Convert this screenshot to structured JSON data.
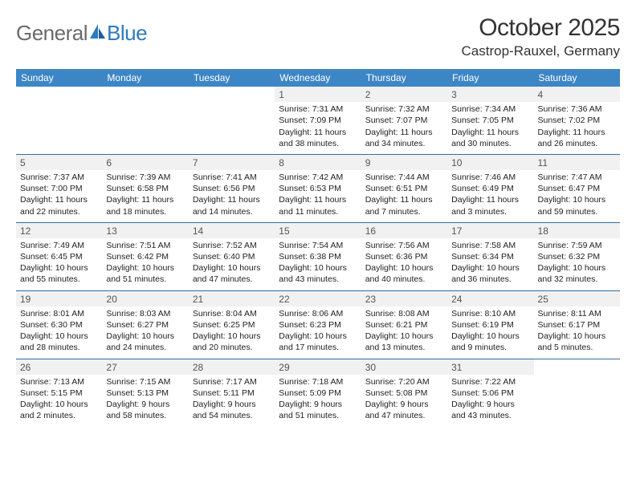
{
  "logo": {
    "part1": "General",
    "part2": "Blue"
  },
  "title": "October 2025",
  "location": "Castrop-Rauxel, Germany",
  "colors": {
    "header_bg": "#3d86c6",
    "header_text": "#ffffff",
    "row_border": "#2f6da8",
    "daynum_bg": "#f1f1f1",
    "daynum_color": "#555555",
    "body_text": "#222222",
    "title_color": "#333333",
    "logo_gray": "#6a6a6a",
    "logo_blue": "#2f7bbf"
  },
  "weekdays": [
    "Sunday",
    "Monday",
    "Tuesday",
    "Wednesday",
    "Thursday",
    "Friday",
    "Saturday"
  ],
  "cells": [
    {
      "day": "",
      "sunrise": "",
      "sunset": "",
      "daylight1": "",
      "daylight2": ""
    },
    {
      "day": "",
      "sunrise": "",
      "sunset": "",
      "daylight1": "",
      "daylight2": ""
    },
    {
      "day": "",
      "sunrise": "",
      "sunset": "",
      "daylight1": "",
      "daylight2": ""
    },
    {
      "day": "1",
      "sunrise": "Sunrise: 7:31 AM",
      "sunset": "Sunset: 7:09 PM",
      "daylight1": "Daylight: 11 hours",
      "daylight2": "and 38 minutes."
    },
    {
      "day": "2",
      "sunrise": "Sunrise: 7:32 AM",
      "sunset": "Sunset: 7:07 PM",
      "daylight1": "Daylight: 11 hours",
      "daylight2": "and 34 minutes."
    },
    {
      "day": "3",
      "sunrise": "Sunrise: 7:34 AM",
      "sunset": "Sunset: 7:05 PM",
      "daylight1": "Daylight: 11 hours",
      "daylight2": "and 30 minutes."
    },
    {
      "day": "4",
      "sunrise": "Sunrise: 7:36 AM",
      "sunset": "Sunset: 7:02 PM",
      "daylight1": "Daylight: 11 hours",
      "daylight2": "and 26 minutes."
    },
    {
      "day": "5",
      "sunrise": "Sunrise: 7:37 AM",
      "sunset": "Sunset: 7:00 PM",
      "daylight1": "Daylight: 11 hours",
      "daylight2": "and 22 minutes."
    },
    {
      "day": "6",
      "sunrise": "Sunrise: 7:39 AM",
      "sunset": "Sunset: 6:58 PM",
      "daylight1": "Daylight: 11 hours",
      "daylight2": "and 18 minutes."
    },
    {
      "day": "7",
      "sunrise": "Sunrise: 7:41 AM",
      "sunset": "Sunset: 6:56 PM",
      "daylight1": "Daylight: 11 hours",
      "daylight2": "and 14 minutes."
    },
    {
      "day": "8",
      "sunrise": "Sunrise: 7:42 AM",
      "sunset": "Sunset: 6:53 PM",
      "daylight1": "Daylight: 11 hours",
      "daylight2": "and 11 minutes."
    },
    {
      "day": "9",
      "sunrise": "Sunrise: 7:44 AM",
      "sunset": "Sunset: 6:51 PM",
      "daylight1": "Daylight: 11 hours",
      "daylight2": "and 7 minutes."
    },
    {
      "day": "10",
      "sunrise": "Sunrise: 7:46 AM",
      "sunset": "Sunset: 6:49 PM",
      "daylight1": "Daylight: 11 hours",
      "daylight2": "and 3 minutes."
    },
    {
      "day": "11",
      "sunrise": "Sunrise: 7:47 AM",
      "sunset": "Sunset: 6:47 PM",
      "daylight1": "Daylight: 10 hours",
      "daylight2": "and 59 minutes."
    },
    {
      "day": "12",
      "sunrise": "Sunrise: 7:49 AM",
      "sunset": "Sunset: 6:45 PM",
      "daylight1": "Daylight: 10 hours",
      "daylight2": "and 55 minutes."
    },
    {
      "day": "13",
      "sunrise": "Sunrise: 7:51 AM",
      "sunset": "Sunset: 6:42 PM",
      "daylight1": "Daylight: 10 hours",
      "daylight2": "and 51 minutes."
    },
    {
      "day": "14",
      "sunrise": "Sunrise: 7:52 AM",
      "sunset": "Sunset: 6:40 PM",
      "daylight1": "Daylight: 10 hours",
      "daylight2": "and 47 minutes."
    },
    {
      "day": "15",
      "sunrise": "Sunrise: 7:54 AM",
      "sunset": "Sunset: 6:38 PM",
      "daylight1": "Daylight: 10 hours",
      "daylight2": "and 43 minutes."
    },
    {
      "day": "16",
      "sunrise": "Sunrise: 7:56 AM",
      "sunset": "Sunset: 6:36 PM",
      "daylight1": "Daylight: 10 hours",
      "daylight2": "and 40 minutes."
    },
    {
      "day": "17",
      "sunrise": "Sunrise: 7:58 AM",
      "sunset": "Sunset: 6:34 PM",
      "daylight1": "Daylight: 10 hours",
      "daylight2": "and 36 minutes."
    },
    {
      "day": "18",
      "sunrise": "Sunrise: 7:59 AM",
      "sunset": "Sunset: 6:32 PM",
      "daylight1": "Daylight: 10 hours",
      "daylight2": "and 32 minutes."
    },
    {
      "day": "19",
      "sunrise": "Sunrise: 8:01 AM",
      "sunset": "Sunset: 6:30 PM",
      "daylight1": "Daylight: 10 hours",
      "daylight2": "and 28 minutes."
    },
    {
      "day": "20",
      "sunrise": "Sunrise: 8:03 AM",
      "sunset": "Sunset: 6:27 PM",
      "daylight1": "Daylight: 10 hours",
      "daylight2": "and 24 minutes."
    },
    {
      "day": "21",
      "sunrise": "Sunrise: 8:04 AM",
      "sunset": "Sunset: 6:25 PM",
      "daylight1": "Daylight: 10 hours",
      "daylight2": "and 20 minutes."
    },
    {
      "day": "22",
      "sunrise": "Sunrise: 8:06 AM",
      "sunset": "Sunset: 6:23 PM",
      "daylight1": "Daylight: 10 hours",
      "daylight2": "and 17 minutes."
    },
    {
      "day": "23",
      "sunrise": "Sunrise: 8:08 AM",
      "sunset": "Sunset: 6:21 PM",
      "daylight1": "Daylight: 10 hours",
      "daylight2": "and 13 minutes."
    },
    {
      "day": "24",
      "sunrise": "Sunrise: 8:10 AM",
      "sunset": "Sunset: 6:19 PM",
      "daylight1": "Daylight: 10 hours",
      "daylight2": "and 9 minutes."
    },
    {
      "day": "25",
      "sunrise": "Sunrise: 8:11 AM",
      "sunset": "Sunset: 6:17 PM",
      "daylight1": "Daylight: 10 hours",
      "daylight2": "and 5 minutes."
    },
    {
      "day": "26",
      "sunrise": "Sunrise: 7:13 AM",
      "sunset": "Sunset: 5:15 PM",
      "daylight1": "Daylight: 10 hours",
      "daylight2": "and 2 minutes."
    },
    {
      "day": "27",
      "sunrise": "Sunrise: 7:15 AM",
      "sunset": "Sunset: 5:13 PM",
      "daylight1": "Daylight: 9 hours",
      "daylight2": "and 58 minutes."
    },
    {
      "day": "28",
      "sunrise": "Sunrise: 7:17 AM",
      "sunset": "Sunset: 5:11 PM",
      "daylight1": "Daylight: 9 hours",
      "daylight2": "and 54 minutes."
    },
    {
      "day": "29",
      "sunrise": "Sunrise: 7:18 AM",
      "sunset": "Sunset: 5:09 PM",
      "daylight1": "Daylight: 9 hours",
      "daylight2": "and 51 minutes."
    },
    {
      "day": "30",
      "sunrise": "Sunrise: 7:20 AM",
      "sunset": "Sunset: 5:08 PM",
      "daylight1": "Daylight: 9 hours",
      "daylight2": "and 47 minutes."
    },
    {
      "day": "31",
      "sunrise": "Sunrise: 7:22 AM",
      "sunset": "Sunset: 5:06 PM",
      "daylight1": "Daylight: 9 hours",
      "daylight2": "and 43 minutes."
    },
    {
      "day": "",
      "sunrise": "",
      "sunset": "",
      "daylight1": "",
      "daylight2": ""
    }
  ]
}
